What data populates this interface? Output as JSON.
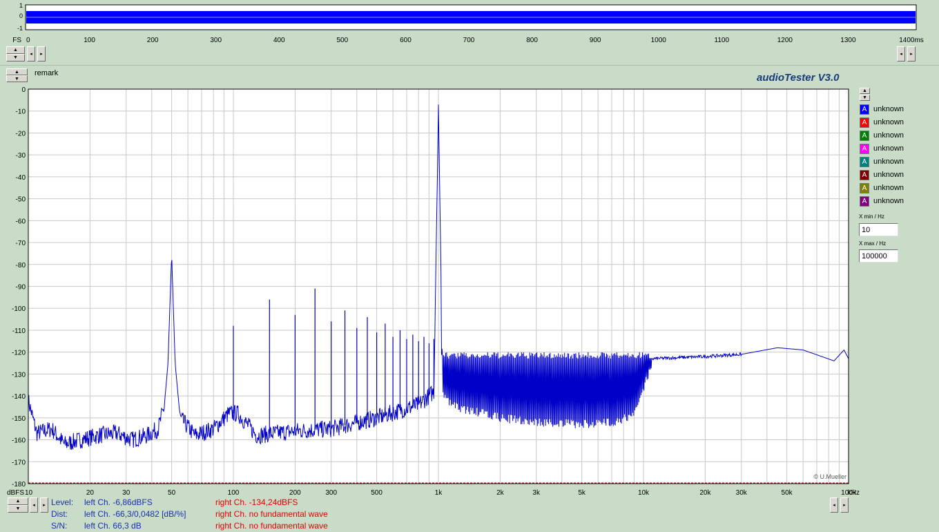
{
  "top_scope": {
    "y_ticks": [
      "1",
      "0",
      "-1"
    ],
    "unit_label": "FS",
    "x_ticks": [
      "0",
      "100",
      "200",
      "300",
      "400",
      "500",
      "600",
      "700",
      "800",
      "900",
      "1000",
      "1100",
      "1200",
      "1300",
      "1400ms"
    ]
  },
  "remark_label": "remark",
  "app_title": "audioTester  V3.0",
  "copyright": "© U.Mueller",
  "legend": [
    {
      "label": "unknown",
      "color": "#0000ff"
    },
    {
      "label": "unknown",
      "color": "#ff0000"
    },
    {
      "label": "unknown",
      "color": "#008000"
    },
    {
      "label": "unknown",
      "color": "#ff00ff"
    },
    {
      "label": "unknown",
      "color": "#008080"
    },
    {
      "label": "unknown",
      "color": "#800000"
    },
    {
      "label": "unknown",
      "color": "#808000"
    },
    {
      "label": "unknown",
      "color": "#800080"
    }
  ],
  "x_min": {
    "label": "X min / Hz",
    "value": "10"
  },
  "x_max": {
    "label": "X max / Hz",
    "value": "100000"
  },
  "status": {
    "level_label": "Level:",
    "dist_label": "Dist:",
    "sn_label": "S/N:",
    "level_left": "left Ch. -6,86dBFS",
    "dist_left": "left Ch. -66,3/0,0482 [dB/%]",
    "sn_left": "left Ch. 66,3 dB",
    "level_right": "right Ch. -134,24dBFS",
    "dist_right": "right Ch.  no fundamental wave",
    "sn_right": "right Ch.  no fundamental wave"
  },
  "chart_data": {
    "type": "line",
    "title": "",
    "xlabel": "kHz",
    "ylabel": "dBFS",
    "x_scale": "log",
    "xlim": [
      10,
      100000
    ],
    "ylim": [
      -180,
      0
    ],
    "grid": true,
    "x_tick_labels": [
      "10",
      "20",
      "30",
      "50",
      "100",
      "200",
      "300",
      "500",
      "1k",
      "2k",
      "3k",
      "5k",
      "10k",
      "20k",
      "30k",
      "50k",
      "100k"
    ],
    "y_tick_labels": [
      "0",
      "-10",
      "-20",
      "-30",
      "-40",
      "-50",
      "-60",
      "-70",
      "-80",
      "-90",
      "-100",
      "-110",
      "-120",
      "-130",
      "-140",
      "-150",
      "-160",
      "-170",
      "-180"
    ],
    "reference_line_db": -180,
    "series": [
      {
        "name": "unknown",
        "color": "#0000ff",
        "noise_floor": [
          [
            10,
            -142
          ],
          [
            11,
            -157
          ],
          [
            13,
            -155
          ],
          [
            15,
            -162
          ],
          [
            18,
            -160
          ],
          [
            22,
            -158
          ],
          [
            27,
            -157
          ],
          [
            32,
            -160
          ],
          [
            38,
            -158
          ],
          [
            43,
            -155
          ],
          [
            46,
            -145
          ],
          [
            48,
            -125
          ],
          [
            50,
            -75
          ],
          [
            52,
            -125
          ],
          [
            55,
            -150
          ],
          [
            65,
            -158
          ],
          [
            80,
            -155
          ],
          [
            95,
            -148
          ],
          [
            105,
            -148
          ],
          [
            130,
            -158
          ],
          [
            200,
            -156
          ],
          [
            300,
            -155
          ],
          [
            500,
            -150
          ],
          [
            800,
            -144
          ],
          [
            950,
            -138
          ],
          [
            1000,
            -7
          ],
          [
            1050,
            -138
          ],
          [
            1200,
            -143
          ],
          [
            2000,
            -148
          ],
          [
            3000,
            -150
          ],
          [
            5000,
            -151
          ],
          [
            7000,
            -150
          ],
          [
            9000,
            -147
          ],
          [
            11000,
            -123
          ],
          [
            20000,
            -122
          ],
          [
            30000,
            -121
          ],
          [
            45000,
            -118
          ],
          [
            60000,
            -119
          ],
          [
            85000,
            -124
          ],
          [
            95000,
            -119
          ],
          [
            100000,
            -123
          ]
        ],
        "harmonic_peaks": [
          [
            100,
            -108
          ],
          [
            150,
            -96
          ],
          [
            200,
            -103
          ],
          [
            250,
            -91
          ],
          [
            300,
            -106
          ],
          [
            350,
            -101
          ],
          [
            400,
            -109
          ],
          [
            450,
            -104
          ],
          [
            500,
            -111
          ],
          [
            550,
            -107
          ],
          [
            600,
            -113
          ],
          [
            650,
            -110
          ],
          [
            700,
            -114
          ],
          [
            750,
            -112
          ],
          [
            800,
            -115
          ],
          [
            850,
            -113
          ],
          [
            900,
            -116
          ],
          [
            950,
            -114
          ]
        ],
        "hf_comb_range": [
          1000,
          11000
        ]
      }
    ]
  }
}
